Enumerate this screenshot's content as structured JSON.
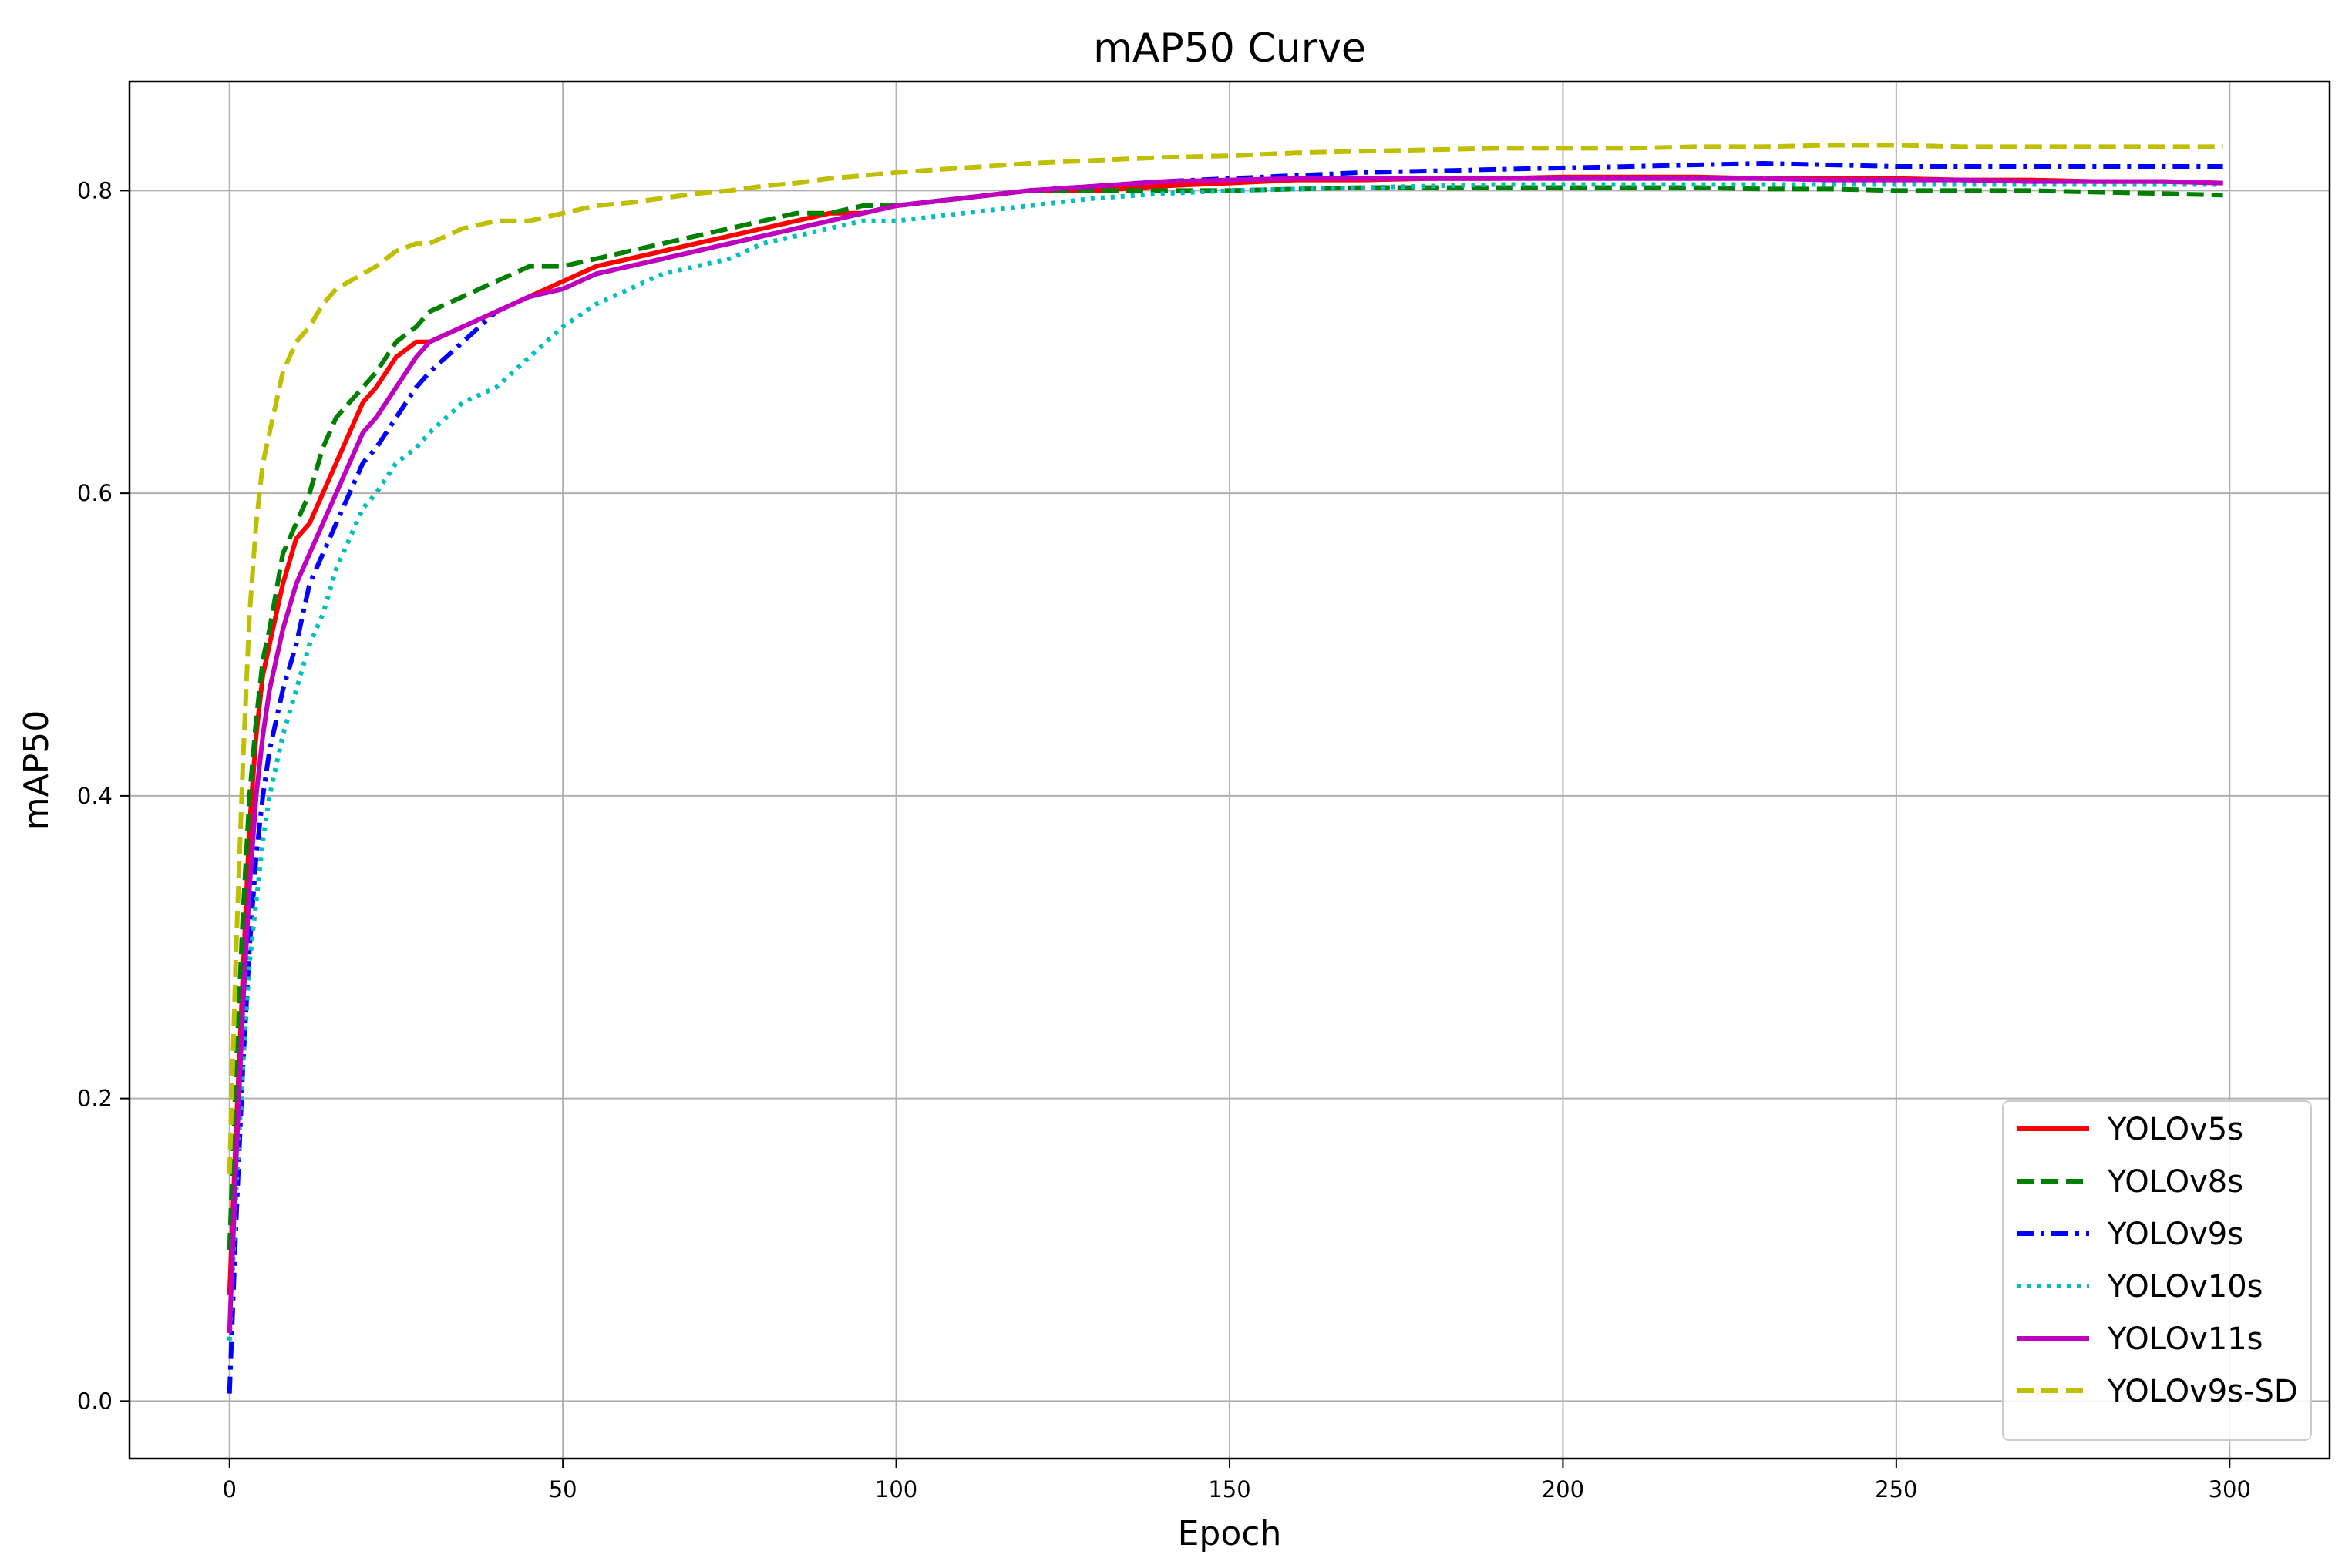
{
  "chart_data": {
    "type": "line",
    "title": "mAP50 Curve",
    "xlabel": "Epoch",
    "ylabel": "mAP50",
    "xlim": [
      -15,
      315
    ],
    "ylim": [
      -0.038,
      0.872
    ],
    "xticks": [
      0,
      50,
      100,
      150,
      200,
      250,
      300
    ],
    "yticks": [
      0.0,
      0.2,
      0.4,
      0.6,
      0.8
    ],
    "ytick_labels": [
      "0.0",
      "0.2",
      "0.4",
      "0.6",
      "0.8"
    ],
    "grid": true,
    "legend_position": "lower-right",
    "series": [
      {
        "name": "YOLOv5s",
        "color": "#ff0000",
        "dash": "solid",
        "x": [
          0,
          1,
          2,
          3,
          4,
          5,
          6,
          8,
          10,
          12,
          14,
          16,
          18,
          20,
          22,
          25,
          28,
          30,
          35,
          40,
          45,
          50,
          55,
          60,
          65,
          70,
          75,
          80,
          85,
          90,
          95,
          100,
          110,
          120,
          130,
          140,
          150,
          160,
          170,
          180,
          190,
          200,
          210,
          220,
          230,
          240,
          250,
          260,
          270,
          280,
          290,
          299
        ],
        "values": [
          0.07,
          0.18,
          0.28,
          0.38,
          0.44,
          0.48,
          0.5,
          0.54,
          0.57,
          0.58,
          0.6,
          0.62,
          0.64,
          0.66,
          0.67,
          0.69,
          0.7,
          0.7,
          0.71,
          0.72,
          0.73,
          0.74,
          0.75,
          0.755,
          0.76,
          0.765,
          0.77,
          0.775,
          0.78,
          0.785,
          0.785,
          0.79,
          0.795,
          0.8,
          0.8,
          0.803,
          0.805,
          0.807,
          0.807,
          0.808,
          0.808,
          0.809,
          0.809,
          0.809,
          0.808,
          0.808,
          0.808,
          0.807,
          0.807,
          0.806,
          0.806,
          0.805
        ]
      },
      {
        "name": "YOLOv8s",
        "color": "#008000",
        "dash": "dashed",
        "x": [
          0,
          1,
          2,
          3,
          4,
          5,
          6,
          8,
          10,
          12,
          14,
          16,
          18,
          20,
          22,
          25,
          28,
          30,
          35,
          40,
          45,
          50,
          55,
          60,
          65,
          70,
          75,
          80,
          85,
          90,
          95,
          100,
          110,
          120,
          130,
          140,
          150,
          160,
          170,
          180,
          190,
          200,
          210,
          220,
          230,
          240,
          250,
          260,
          270,
          280,
          290,
          299
        ],
        "values": [
          0.1,
          0.22,
          0.32,
          0.4,
          0.45,
          0.49,
          0.51,
          0.56,
          0.58,
          0.6,
          0.63,
          0.65,
          0.66,
          0.67,
          0.68,
          0.7,
          0.71,
          0.72,
          0.73,
          0.74,
          0.75,
          0.75,
          0.755,
          0.76,
          0.765,
          0.77,
          0.775,
          0.78,
          0.785,
          0.785,
          0.79,
          0.79,
          0.795,
          0.8,
          0.8,
          0.8,
          0.8,
          0.801,
          0.802,
          0.802,
          0.802,
          0.802,
          0.802,
          0.802,
          0.801,
          0.801,
          0.8,
          0.8,
          0.8,
          0.799,
          0.798,
          0.797
        ]
      },
      {
        "name": "YOLOv9s",
        "color": "#0000ff",
        "dash": "dashdot",
        "x": [
          0,
          1,
          2,
          3,
          4,
          5,
          6,
          8,
          10,
          12,
          14,
          16,
          18,
          20,
          22,
          25,
          28,
          30,
          35,
          40,
          45,
          50,
          55,
          60,
          65,
          70,
          75,
          80,
          85,
          90,
          95,
          100,
          110,
          120,
          130,
          140,
          150,
          160,
          170,
          180,
          190,
          200,
          210,
          220,
          230,
          240,
          250,
          260,
          270,
          280,
          290,
          299
        ],
        "values": [
          0.005,
          0.12,
          0.22,
          0.3,
          0.36,
          0.4,
          0.43,
          0.47,
          0.5,
          0.54,
          0.56,
          0.58,
          0.6,
          0.62,
          0.63,
          0.65,
          0.67,
          0.68,
          0.7,
          0.72,
          0.73,
          0.735,
          0.745,
          0.75,
          0.755,
          0.76,
          0.765,
          0.77,
          0.775,
          0.78,
          0.785,
          0.79,
          0.795,
          0.8,
          0.803,
          0.806,
          0.808,
          0.81,
          0.812,
          0.813,
          0.814,
          0.815,
          0.816,
          0.817,
          0.818,
          0.817,
          0.816,
          0.816,
          0.816,
          0.816,
          0.816,
          0.816
        ]
      },
      {
        "name": "YOLOv10s",
        "color": "#00bfbf",
        "dash": "dotted",
        "x": [
          0,
          1,
          2,
          3,
          4,
          5,
          6,
          8,
          10,
          12,
          14,
          16,
          18,
          20,
          22,
          25,
          28,
          30,
          35,
          40,
          45,
          50,
          55,
          60,
          65,
          70,
          75,
          80,
          85,
          90,
          95,
          100,
          110,
          120,
          130,
          140,
          150,
          160,
          170,
          180,
          190,
          200,
          210,
          220,
          230,
          240,
          250,
          260,
          270,
          280,
          290,
          299
        ],
        "values": [
          0.04,
          0.14,
          0.22,
          0.29,
          0.33,
          0.37,
          0.4,
          0.44,
          0.47,
          0.5,
          0.52,
          0.55,
          0.57,
          0.59,
          0.6,
          0.62,
          0.63,
          0.64,
          0.66,
          0.67,
          0.69,
          0.71,
          0.725,
          0.735,
          0.745,
          0.75,
          0.755,
          0.765,
          0.77,
          0.775,
          0.78,
          0.78,
          0.785,
          0.79,
          0.795,
          0.798,
          0.8,
          0.801,
          0.802,
          0.803,
          0.804,
          0.804,
          0.804,
          0.804,
          0.804,
          0.804,
          0.804,
          0.804,
          0.804,
          0.804,
          0.804,
          0.804
        ]
      },
      {
        "name": "YOLOv11s",
        "color": "#bf00bf",
        "dash": "solid",
        "x": [
          0,
          1,
          2,
          3,
          4,
          5,
          6,
          8,
          10,
          12,
          14,
          16,
          18,
          20,
          22,
          25,
          28,
          30,
          35,
          40,
          45,
          50,
          55,
          60,
          65,
          70,
          75,
          80,
          85,
          90,
          95,
          100,
          110,
          120,
          130,
          140,
          150,
          160,
          170,
          180,
          190,
          200,
          210,
          220,
          230,
          240,
          250,
          260,
          270,
          280,
          290,
          299
        ],
        "values": [
          0.045,
          0.16,
          0.26,
          0.34,
          0.4,
          0.44,
          0.47,
          0.51,
          0.54,
          0.56,
          0.58,
          0.6,
          0.62,
          0.64,
          0.65,
          0.67,
          0.69,
          0.7,
          0.71,
          0.72,
          0.73,
          0.735,
          0.745,
          0.75,
          0.755,
          0.76,
          0.765,
          0.77,
          0.775,
          0.78,
          0.785,
          0.79,
          0.795,
          0.8,
          0.803,
          0.806,
          0.807,
          0.808,
          0.808,
          0.808,
          0.808,
          0.808,
          0.808,
          0.808,
          0.808,
          0.807,
          0.807,
          0.807,
          0.806,
          0.806,
          0.806,
          0.805
        ]
      },
      {
        "name": "YOLOv9s-SD",
        "color": "#bfbf00",
        "dash": "dashed",
        "x": [
          0,
          1,
          2,
          3,
          4,
          5,
          6,
          8,
          10,
          12,
          14,
          16,
          18,
          20,
          22,
          25,
          28,
          30,
          35,
          40,
          45,
          50,
          55,
          60,
          65,
          70,
          75,
          80,
          85,
          90,
          95,
          100,
          110,
          120,
          130,
          140,
          150,
          160,
          170,
          180,
          190,
          200,
          210,
          220,
          230,
          240,
          250,
          260,
          270,
          280,
          290,
          299
        ],
        "values": [
          0.15,
          0.3,
          0.42,
          0.52,
          0.58,
          0.62,
          0.64,
          0.68,
          0.7,
          0.71,
          0.725,
          0.735,
          0.74,
          0.745,
          0.75,
          0.76,
          0.765,
          0.765,
          0.775,
          0.78,
          0.78,
          0.785,
          0.79,
          0.792,
          0.795,
          0.798,
          0.8,
          0.803,
          0.805,
          0.808,
          0.81,
          0.812,
          0.815,
          0.818,
          0.82,
          0.822,
          0.823,
          0.825,
          0.826,
          0.827,
          0.828,
          0.828,
          0.828,
          0.829,
          0.829,
          0.83,
          0.83,
          0.829,
          0.829,
          0.829,
          0.829,
          0.829
        ]
      }
    ]
  }
}
